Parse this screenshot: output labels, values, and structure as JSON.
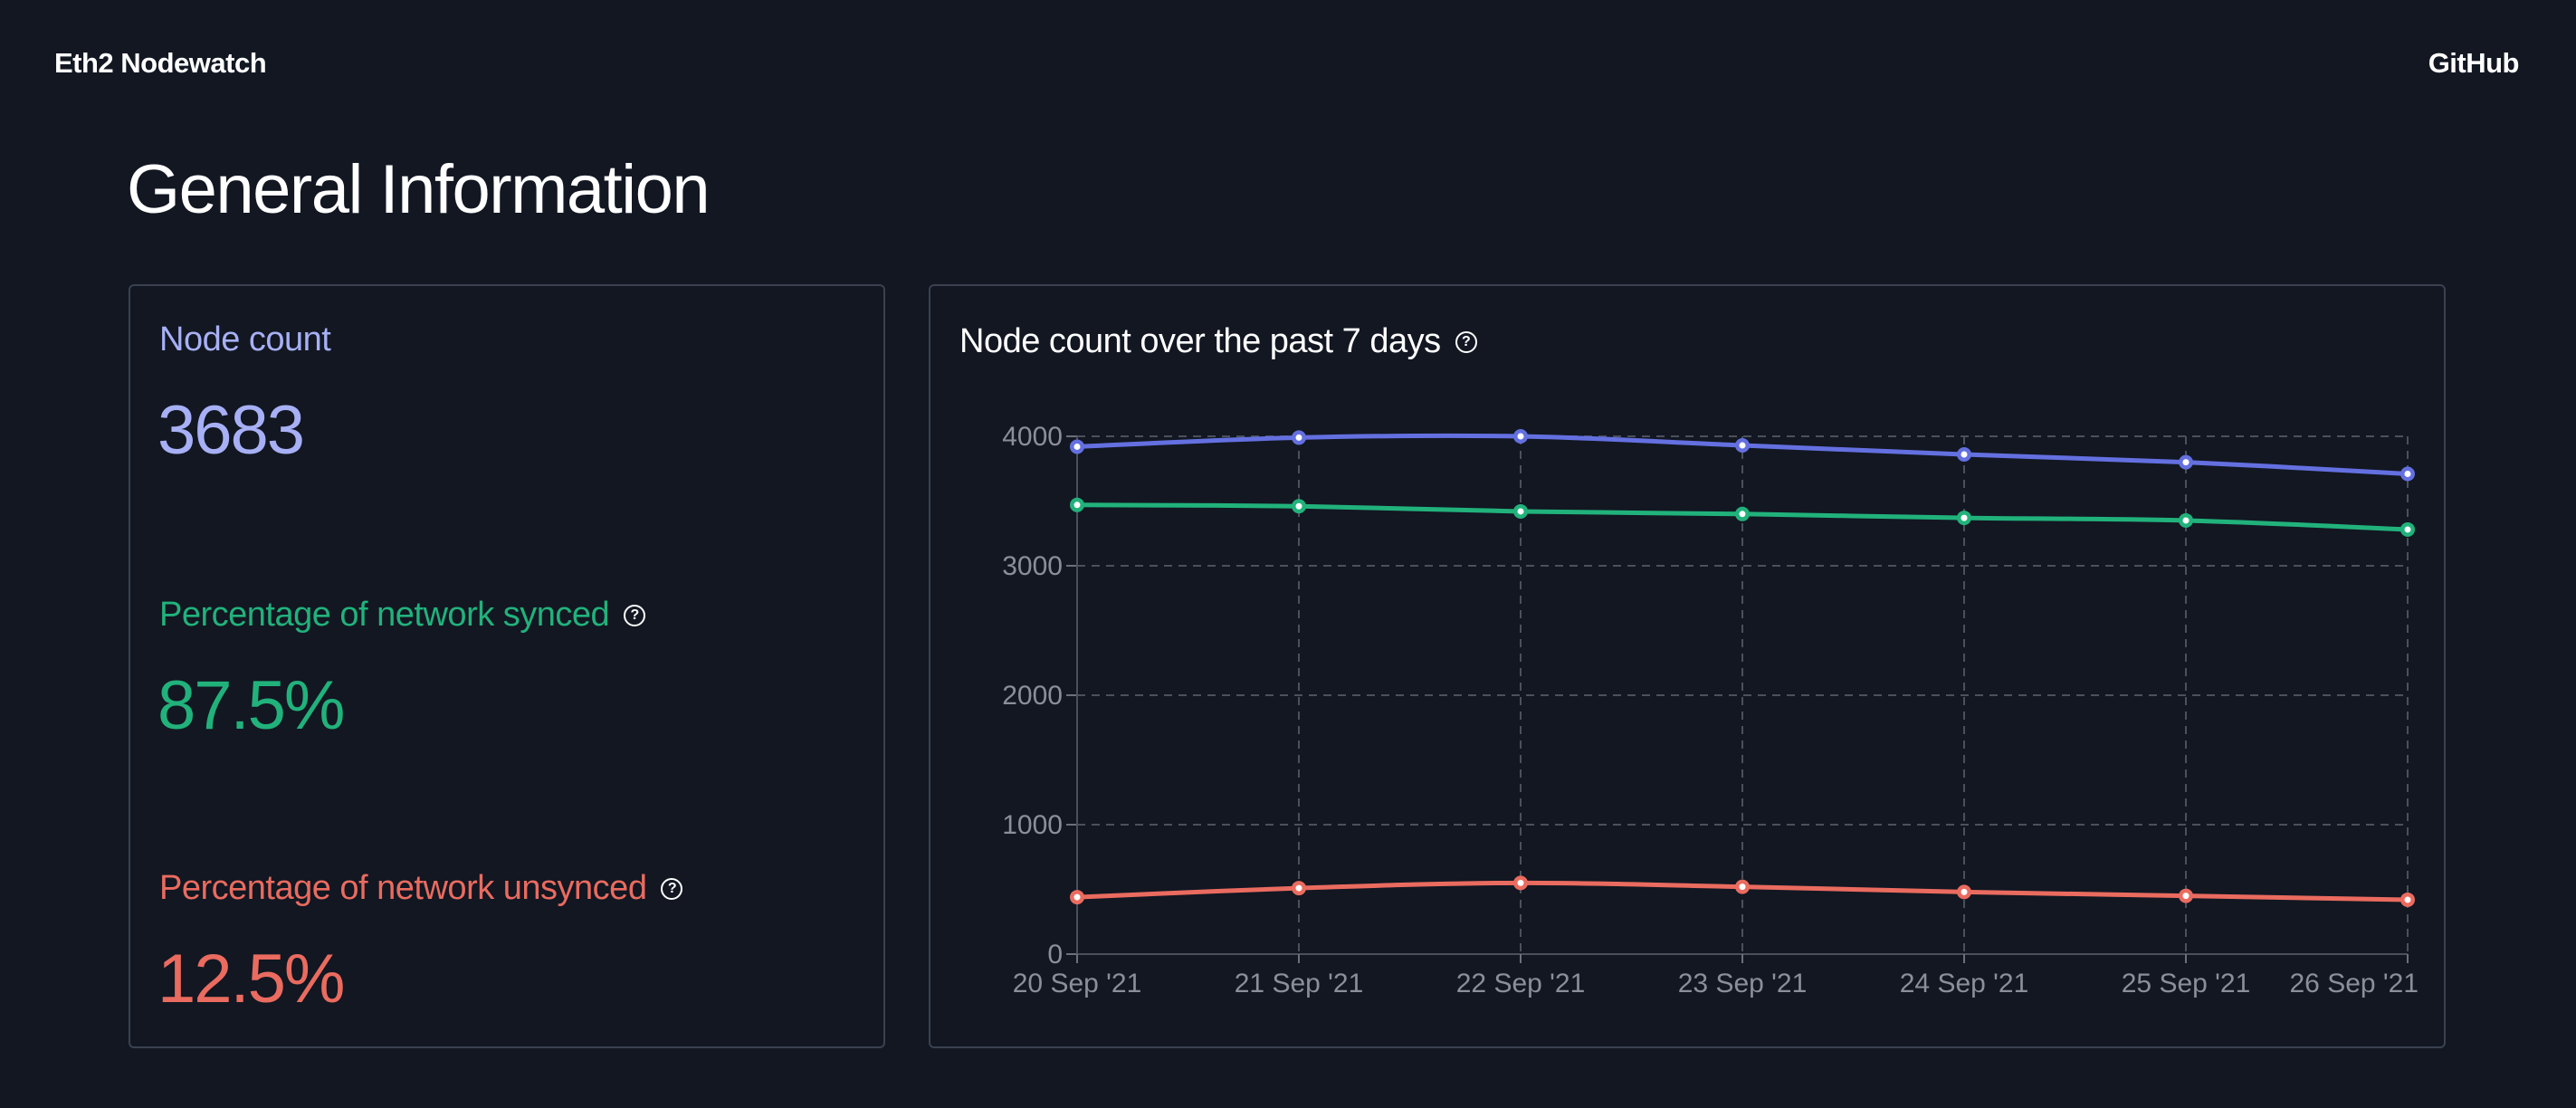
{
  "header": {
    "brand": "Eth2 Nodewatch",
    "github_label": "GitHub"
  },
  "page": {
    "title": "General Information"
  },
  "stats": {
    "node_count_label": "Node count",
    "node_count_value": "3683",
    "synced_label": "Percentage of network synced",
    "synced_value": "87.5%",
    "unsynced_label": "Percentage of network unsynced",
    "unsynced_value": "12.5%"
  },
  "icons": {
    "help": "question-circle-icon",
    "help_glyph": "?"
  },
  "colors": {
    "background": "#121722",
    "total": "#6470e0",
    "synced": "#21b27b",
    "unsynced": "#ea6b5f",
    "node_count_text": "#a7b0f5"
  },
  "chart_data": {
    "type": "line",
    "title": "Node count over the past 7 days",
    "categories": [
      "20 Sep '21",
      "21 Sep '21",
      "22 Sep '21",
      "23 Sep '21",
      "24 Sep '21",
      "25 Sep '21",
      "26 Sep '21"
    ],
    "series": [
      {
        "color": "#6470e0",
        "values": [
          3920,
          3990,
          4000,
          3930,
          3860,
          3800,
          3710
        ]
      },
      {
        "color": "#21b27b",
        "values": [
          3470,
          3460,
          3420,
          3400,
          3370,
          3350,
          3280
        ]
      },
      {
        "color": "#ea6b5f",
        "values": [
          440,
          510,
          550,
          520,
          480,
          450,
          420
        ]
      }
    ],
    "yticks": [
      0,
      1000,
      2000,
      3000,
      4000
    ],
    "ylim": [
      0,
      4000
    ],
    "grid": true,
    "grid_style": "dashed",
    "legend": "none"
  }
}
